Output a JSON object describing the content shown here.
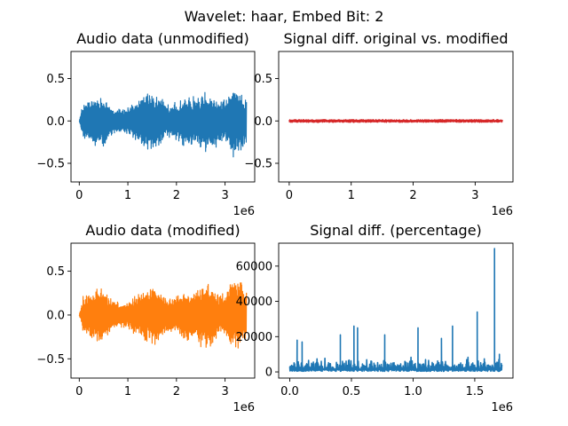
{
  "figure": {
    "suptitle": "Wavelet: haar, Embed Bit: 2"
  },
  "chart_data": [
    {
      "id": "ax0",
      "type": "line",
      "title": "Audio data (unmodified)",
      "color": "#1f77b4",
      "signal": "audio",
      "xlim": [
        -170000,
        3610000
      ],
      "ylim": [
        -0.72,
        0.82
      ],
      "x_offset_label": "1e6",
      "xticks": [
        {
          "v": 0,
          "label": "0"
        },
        {
          "v": 1000000,
          "label": "1"
        },
        {
          "v": 2000000,
          "label": "2"
        },
        {
          "v": 3000000,
          "label": "3"
        }
      ],
      "yticks": [
        {
          "v": -0.5,
          "label": "−0.5"
        },
        {
          "v": 0.0,
          "label": "0.0"
        },
        {
          "v": 0.5,
          "label": "0.5"
        }
      ],
      "x_range": [
        0,
        3440000
      ]
    },
    {
      "id": "ax1",
      "type": "line",
      "title": "Signal diff. original vs. modified",
      "color": "#d62728",
      "signal": "diff",
      "xlim": [
        -170000,
        3610000
      ],
      "ylim": [
        -0.72,
        0.82
      ],
      "x_offset_label": "1e6",
      "xticks": [
        {
          "v": 0,
          "label": "0"
        },
        {
          "v": 1000000,
          "label": "1"
        },
        {
          "v": 2000000,
          "label": "2"
        },
        {
          "v": 3000000,
          "label": "3"
        }
      ],
      "yticks": [
        {
          "v": -0.5,
          "label": "−0.5"
        },
        {
          "v": 0.0,
          "label": "0.0"
        },
        {
          "v": 0.5,
          "label": "0.5"
        }
      ],
      "x_range": [
        0,
        3440000
      ]
    },
    {
      "id": "ax2",
      "type": "line",
      "title": "Audio data (modified)",
      "color": "#ff7f0e",
      "signal": "audio",
      "xlim": [
        -170000,
        3610000
      ],
      "ylim": [
        -0.72,
        0.82
      ],
      "x_offset_label": "1e6",
      "xticks": [
        {
          "v": 0,
          "label": "0"
        },
        {
          "v": 1000000,
          "label": "1"
        },
        {
          "v": 2000000,
          "label": "2"
        },
        {
          "v": 3000000,
          "label": "3"
        }
      ],
      "yticks": [
        {
          "v": -0.5,
          "label": "−0.5"
        },
        {
          "v": 0.0,
          "label": "0.0"
        },
        {
          "v": 0.5,
          "label": "0.5"
        }
      ],
      "x_range": [
        0,
        3440000
      ]
    },
    {
      "id": "ax3",
      "type": "line",
      "title": "Signal diff. (percentage)",
      "color": "#1f77b4",
      "signal": "percent",
      "xlim": [
        -90000,
        1810000
      ],
      "ylim": [
        -3500,
        73000
      ],
      "x_offset_label": "1e6",
      "xticks": [
        {
          "v": 0,
          "label": "0.0"
        },
        {
          "v": 500000,
          "label": "0.5"
        },
        {
          "v": 1000000,
          "label": "1.0"
        },
        {
          "v": 1500000,
          "label": "1.5"
        }
      ],
      "yticks": [
        {
          "v": 0,
          "label": "0"
        },
        {
          "v": 20000,
          "label": "20000"
        },
        {
          "v": 40000,
          "label": "40000"
        },
        {
          "v": 60000,
          "label": "60000"
        }
      ],
      "x_range": [
        0,
        1720000
      ],
      "peaks": [
        {
          "x": 60000,
          "y": 18000
        },
        {
          "x": 100000,
          "y": 17000
        },
        {
          "x": 410000,
          "y": 21000
        },
        {
          "x": 520000,
          "y": 26000
        },
        {
          "x": 550000,
          "y": 25000
        },
        {
          "x": 770000,
          "y": 21000
        },
        {
          "x": 1040000,
          "y": 25000
        },
        {
          "x": 1230000,
          "y": 19000
        },
        {
          "x": 1320000,
          "y": 26000
        },
        {
          "x": 1520000,
          "y": 34000
        },
        {
          "x": 1660000,
          "y": 70000
        },
        {
          "x": 1700000,
          "y": 10000
        }
      ]
    }
  ]
}
